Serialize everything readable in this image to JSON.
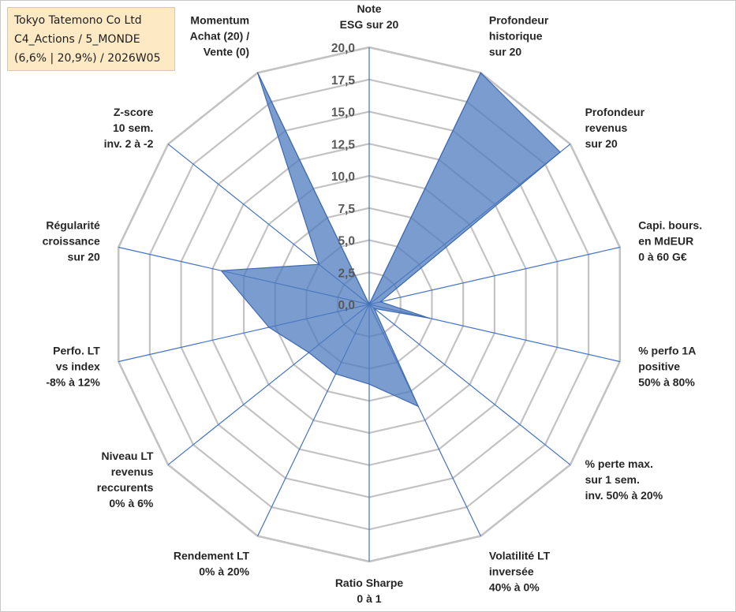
{
  "info": {
    "line1": "Tokyo Tatemono Co Ltd",
    "line2": "C4_Actions / 5_MONDE",
    "line3": "(6,6% | 20,9%) / 2026W05"
  },
  "chart_data": {
    "type": "radar",
    "max": 20,
    "ticks": [
      "0,0",
      "2,5",
      "5,0",
      "7,5",
      "10,0",
      "12,5",
      "15,0",
      "17,5",
      "20,0"
    ],
    "series_color": "#4f7bbd",
    "grid_color": "#c3c3c3",
    "axis_color": "#4472c4",
    "axes": [
      {
        "label": [
          "Note",
          "ESG sur 20"
        ],
        "value": 0
      },
      {
        "label": [
          "Profondeur",
          "historique",
          "sur 20"
        ],
        "value": 20
      },
      {
        "label": [
          "Profondeur",
          "revenus",
          "sur 20"
        ],
        "value": 19
      },
      {
        "label": [
          "Capi. bours.",
          "en MdEUR",
          "0 à 60 G€"
        ],
        "value": 0.9
      },
      {
        "label": [
          "% perfo 1A",
          "positive",
          "50% à 80%"
        ],
        "value": 4.8
      },
      {
        "label": [
          "% perte max.",
          "sur 1 sem.",
          "inv. 50% à 20%"
        ],
        "value": 0.5
      },
      {
        "label": [
          "Volatilité LT",
          "inversée",
          "40% à 0%"
        ],
        "value": 8.8
      },
      {
        "label": [
          "Ratio Sharpe",
          "0 à 1"
        ],
        "value": 6.2
      },
      {
        "label": [
          "Rendement LT",
          "0% à 20%"
        ],
        "value": 6.0
      },
      {
        "label": [
          "Niveau LT",
          "revenus",
          "reccurents",
          "0% à 6%"
        ],
        "value": 6.0
      },
      {
        "label": [
          "Perfo. LT",
          "vs index",
          "-8% à 12%"
        ],
        "value": 8.0
      },
      {
        "label": [
          "Régularité",
          "croissance",
          "sur 20"
        ],
        "value": 11.8
      },
      {
        "label": [
          "Z-score",
          "10 sem.",
          "inv. 2 à -2"
        ],
        "value": 5.0
      },
      {
        "label": [
          "Momentum",
          "Achat (20) /",
          "Vente (0)"
        ],
        "value": 20
      }
    ]
  }
}
